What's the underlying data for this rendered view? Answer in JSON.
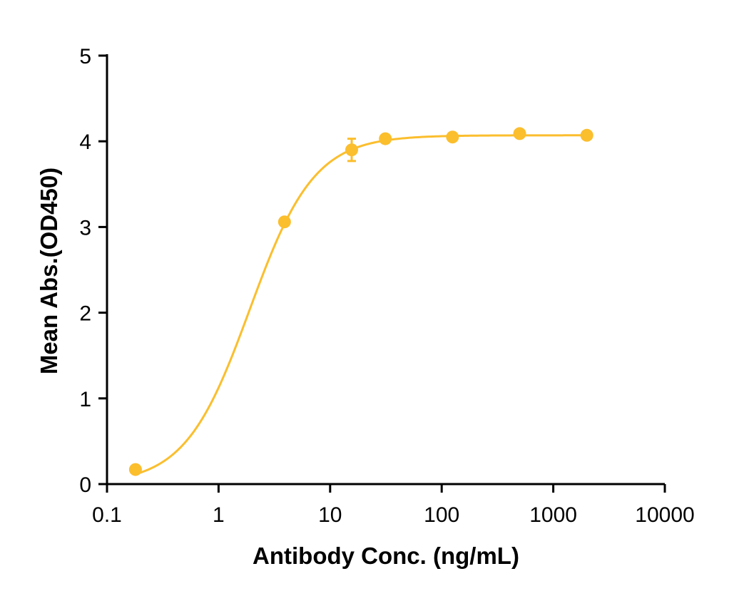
{
  "chart_data": {
    "type": "scatter",
    "xlabel": "Antibody Conc. (ng/mL)",
    "ylabel": "Mean Abs.(OD450)",
    "x_scale": "log",
    "xlim": [
      0.1,
      10000
    ],
    "ylim": [
      0,
      5
    ],
    "x_ticks": [
      "0.1",
      "1",
      "10",
      "100",
      "1000",
      "10000"
    ],
    "y_ticks": [
      "0",
      "1",
      "2",
      "3",
      "4",
      "5"
    ],
    "color": "#FBBE2D",
    "grid": false,
    "series": [
      {
        "x": [
          0.18,
          3.9,
          15.6,
          31.25,
          125,
          500,
          2000
        ],
        "y": [
          0.17,
          3.06,
          3.9,
          4.03,
          4.05,
          4.09,
          4.07
        ],
        "error": [
          0,
          0,
          0.13,
          0,
          0,
          0,
          0
        ]
      }
    ],
    "fit_curve": {
      "model": "4PL",
      "bottom": 0.0,
      "top": 4.07,
      "ec50": 1.9,
      "hill": 1.5
    }
  }
}
